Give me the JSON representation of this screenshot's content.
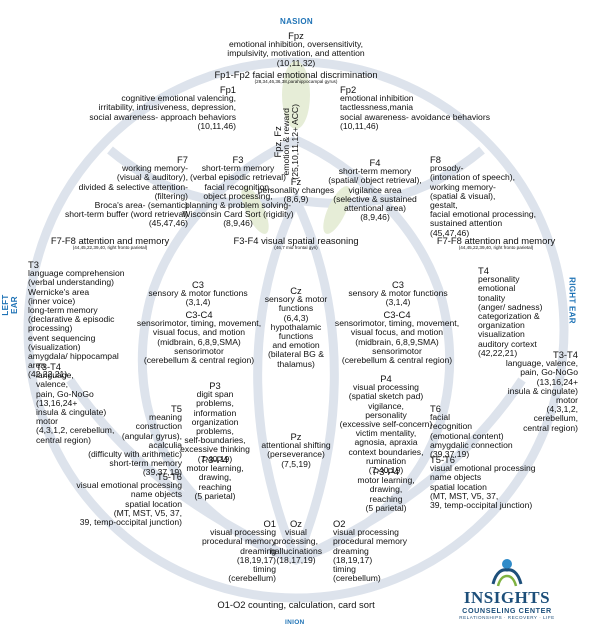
{
  "orientation": {
    "top": "NASION",
    "bottom": "INION",
    "left": "LEFT EAR",
    "right": "RIGHT EAR",
    "color": "#1f73b6"
  },
  "background": {
    "motif": "lotus-outline",
    "color": "#dde3ec",
    "leaf_color": "#e6edd7"
  },
  "logo": {
    "name": "INSIGHTS",
    "subtitle": "COUNSELING CENTER",
    "tagline": "RELATIONSHIPS · RECOVERY · LIFE",
    "colors": [
      "#1d4f7a",
      "#2f8bc9",
      "#7fb241"
    ]
  },
  "regions": [
    {
      "id": "fpz",
      "title": "Fpz",
      "lines": [
        "emotional inhibition, oversensitivity,",
        "impulsivity, motivation, and attention",
        "(10,11,32)"
      ]
    },
    {
      "id": "fp1-fp2",
      "title": "Fp1-Fp2 facial emotional discrimination",
      "note": "(28,34,46,36,38,parahippocampal gyrus)",
      "lines": []
    },
    {
      "id": "fp1",
      "title": "Fp1",
      "lines": [
        "cognitive emotional valencing,",
        "irritability, intrusiveness, depression,",
        "social awareness- approach behaviors",
        "(10,11,46)"
      ]
    },
    {
      "id": "fp2",
      "title": "Fp2",
      "lines": [
        "emotional inhibition",
        "tactlessness,mania",
        "social awareness- avoidance behaviors",
        "(10,11,46)"
      ]
    },
    {
      "id": "fpz-fz",
      "title": "Fpz, Fz",
      "lines": [
        "emotion & reward",
        "(25,10,11,12+ ACC)"
      ]
    },
    {
      "id": "f7",
      "title": "F7",
      "lines": [
        "working memory-",
        "(visual & auditory),",
        "divided & selective attention-",
        "(filtering)",
        "Broca's area- (semantic)",
        "short-term buffer (word retrieval)",
        "(45,47,46)"
      ]
    },
    {
      "id": "f3",
      "title": "F3",
      "lines": [
        "short-term memory",
        "(verbal episodic retrieval)",
        "facial recognition,",
        "object processing,",
        "planning & problem solving-",
        "Wisconsin Card Sort (rigidity)",
        "(8,9,46)"
      ]
    },
    {
      "id": "fz",
      "title": "Fz",
      "lines": [
        "personality changes",
        "(8,6,9)"
      ]
    },
    {
      "id": "f4",
      "title": "F4",
      "lines": [
        "short-term memory",
        "(spatial/ object retrieval),",
        "vigilance area",
        "(selective & sustained",
        "attentional area)",
        "(8,9,46)"
      ]
    },
    {
      "id": "f8",
      "title": "F8",
      "lines": [
        "prosody-",
        "(intonation of speech),",
        "working memory-",
        "(spatial & visual),",
        "gestalt,",
        "facial emotional processing,",
        "sustained attention",
        "(45,47,46)"
      ]
    },
    {
      "id": "f7-f8-left",
      "title": "F7-F8 attention and memory",
      "note": "(44,45,22,39,40, right fronto parietal)",
      "lines": []
    },
    {
      "id": "f3-f4",
      "title": "F3-F4 visual spatial reasoning",
      "note": "(46,7 mid frontal gyri)",
      "lines": []
    },
    {
      "id": "f7-f8-right",
      "title": "F7-F8 attention and memory",
      "note": "(44,45,22,39,40, right fronto parietal)",
      "lines": []
    },
    {
      "id": "t3",
      "title": "T3",
      "lines": [
        "language comprehension",
        "(verbal understanding)",
        "Wernicke's area",
        "(inner voice)",
        "long-term memory",
        "(declarative & episodic",
        "processing)",
        "event sequencing",
        "(visualization)",
        "amygdala/ hippocampal",
        "area",
        "(42,22,21)"
      ]
    },
    {
      "id": "t3-t4-left",
      "title": "T3-T4",
      "lines": [
        "language,",
        "valence,",
        "pain, Go-NoGo",
        "(13,16,24+",
        "insula & cingulate)",
        "motor",
        "(4,3,1,2, cerebellum,",
        "central region)"
      ]
    },
    {
      "id": "c3-left",
      "title": "C3",
      "lines": [
        "sensory & motor functions",
        "(3,1,4)"
      ]
    },
    {
      "id": "c3-c4-left",
      "title": "C3-C4",
      "lines": [
        "sensorimotor, timing, movement,",
        "visual focus, and motion",
        "(midbrain, 6,8,9,SMA)",
        "sensorimotor",
        "(cerebellum & central region)"
      ]
    },
    {
      "id": "cz",
      "title": "Cz",
      "lines": [
        "sensory & motor",
        "functions",
        "(6,4,3)",
        "hypothalamic",
        "functions",
        "and emotion",
        "(bilateral BG &",
        "thalamus)"
      ]
    },
    {
      "id": "c3-right",
      "title": "C3",
      "lines": [
        "sensory & motor functions",
        "(3,1,4)"
      ]
    },
    {
      "id": "c3-c4-right",
      "title": "C3-C4",
      "lines": [
        "sensorimotor, timing, movement,",
        "visual focus, and motion",
        "(midbrain, 6,8,9,SMA)",
        "sensorimotor",
        "(cerebellum & central region)"
      ]
    },
    {
      "id": "t4",
      "title": "T4",
      "lines": [
        "personality",
        "emotional",
        "tonality",
        "(anger/ sadness)",
        "categorization &",
        "organization",
        "visualization",
        "auditory cortext",
        "(42,22,21)"
      ]
    },
    {
      "id": "t3-t4-right",
      "title": "T3-T4",
      "lines": [
        "language, valence,",
        "pain, Go-NoGo",
        "(13,16,24+",
        "insula & cingulate)",
        "motor",
        "(4,3,1,2,",
        "cerebellum,",
        "central region)"
      ]
    },
    {
      "id": "p3",
      "title": "P3",
      "lines": [
        "digit span",
        "problems,",
        "information",
        "organization",
        "problems,",
        "self-boundaries,",
        "excessive thinking",
        "(7,40,19)"
      ]
    },
    {
      "id": "p3-p4-left",
      "title": "P3-P4",
      "lines": [
        "motor learning,",
        "drawing,",
        "reaching",
        "(5 parietal)"
      ]
    },
    {
      "id": "pz",
      "title": "Pz",
      "lines": [
        "attentional shifting",
        "(perseverance)",
        "(7,5,19)"
      ]
    },
    {
      "id": "p4",
      "title": "P4",
      "lines": [
        "visual processing",
        "(spatial sketch pad)",
        "vigilance,",
        "personality",
        "(excessive self-concern)",
        "victim mentality,",
        "agnosia, apraxia",
        "context boundaries,",
        "rumination",
        "(7,40,19)"
      ]
    },
    {
      "id": "p3-p4-right",
      "title": "P3-P4",
      "lines": [
        "motor learning,",
        "drawing,",
        "reaching",
        "(5 parietal)"
      ]
    },
    {
      "id": "t5",
      "title": "T5",
      "lines": [
        "meaning",
        "construction",
        "(angular gyrus),",
        "acalculia",
        "(difficulty with arithmetic)",
        "short-term memory",
        "(39,37,19)"
      ]
    },
    {
      "id": "t5-t6-left",
      "title": "T5-T6",
      "lines": [
        "visual emotional processing",
        "name objects",
        "spatial location",
        "(MT, MST, V5, 37,",
        "39, temp-occipital junction)"
      ]
    },
    {
      "id": "t6",
      "title": "T6",
      "lines": [
        "facial",
        "recognition",
        "(emotional content)",
        "amygdalic connection",
        "(39,37,19)"
      ]
    },
    {
      "id": "t5-t6-right",
      "title": "T5-T6",
      "lines": [
        "visual emotional processing",
        "name objects",
        "spatial location",
        "(MT, MST, V5, 37,",
        "39, temp-occipital junction)"
      ]
    },
    {
      "id": "o1",
      "title": "O1",
      "lines": [
        "visual processing",
        "procedural memory",
        "dreaming",
        "(18,19,17)",
        "timing",
        "(cerebellum)"
      ]
    },
    {
      "id": "oz",
      "title": "Oz",
      "lines": [
        "visual",
        "processing,",
        "hallucinations",
        "(18,17,19)"
      ]
    },
    {
      "id": "o2",
      "title": "O2",
      "lines": [
        "visual processing",
        "procedural memory",
        "dreaming",
        "(18,19,17)",
        "timing",
        "(cerebellum)"
      ]
    },
    {
      "id": "o1-o2",
      "title": "O1-O2 counting, calculation, card sort",
      "lines": []
    }
  ]
}
